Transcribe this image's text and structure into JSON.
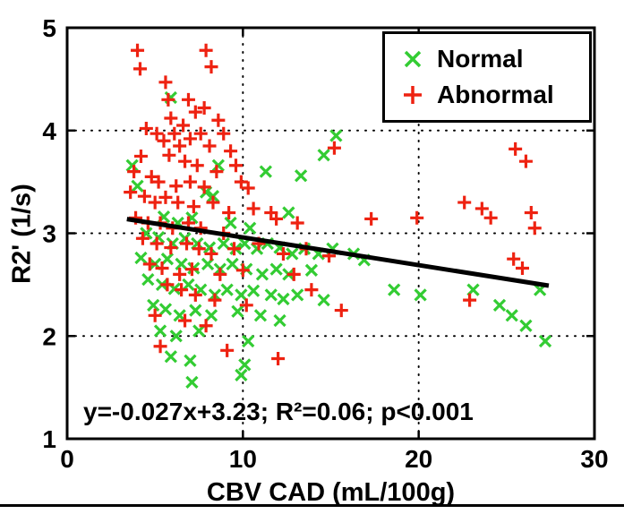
{
  "chart_data": {
    "type": "scatter",
    "title": "",
    "xlabel": "CBV CAD (mL/100g)",
    "ylabel": "R2' (1/s)",
    "xlim": [
      0,
      30
    ],
    "ylim": [
      1,
      5
    ],
    "x_ticks": [
      0,
      10,
      20,
      30
    ],
    "y_ticks": [
      1,
      2,
      3,
      4,
      5
    ],
    "grid": "dotted",
    "legend_position": "top-right",
    "series": [
      {
        "name": "Normal",
        "marker": "x",
        "color": "#33cc33",
        "points": [
          [
            5.9,
            4.32
          ],
          [
            15.3,
            3.95
          ],
          [
            14.6,
            3.76
          ],
          [
            3.7,
            3.66
          ],
          [
            8.6,
            3.66
          ],
          [
            11.3,
            3.6
          ],
          [
            13.3,
            3.56
          ],
          [
            4.0,
            3.46
          ],
          [
            7.9,
            3.4
          ],
          [
            8.3,
            3.36
          ],
          [
            12.6,
            3.2
          ],
          [
            5.5,
            3.16
          ],
          [
            6.3,
            3.1
          ],
          [
            7.1,
            3.15
          ],
          [
            9.3,
            3.1
          ],
          [
            10.4,
            3.05
          ],
          [
            4.5,
            3.0
          ],
          [
            5.2,
            2.96
          ],
          [
            6.0,
            2.9
          ],
          [
            6.7,
            2.95
          ],
          [
            7.4,
            2.9
          ],
          [
            8.1,
            2.86
          ],
          [
            8.9,
            2.9
          ],
          [
            9.6,
            2.85
          ],
          [
            10.1,
            2.9
          ],
          [
            10.8,
            2.85
          ],
          [
            11.4,
            2.9
          ],
          [
            12.1,
            2.86
          ],
          [
            12.8,
            2.8
          ],
          [
            13.5,
            2.85
          ],
          [
            14.3,
            2.8
          ],
          [
            15.1,
            2.85
          ],
          [
            4.2,
            2.76
          ],
          [
            5.0,
            2.7
          ],
          [
            5.7,
            2.75
          ],
          [
            6.5,
            2.7
          ],
          [
            7.2,
            2.66
          ],
          [
            8.0,
            2.7
          ],
          [
            8.7,
            2.65
          ],
          [
            9.4,
            2.7
          ],
          [
            10.2,
            2.65
          ],
          [
            11.1,
            2.6
          ],
          [
            11.9,
            2.65
          ],
          [
            12.6,
            2.6
          ],
          [
            13.9,
            2.64
          ],
          [
            16.3,
            2.8
          ],
          [
            16.9,
            2.74
          ],
          [
            4.6,
            2.55
          ],
          [
            5.4,
            2.5
          ],
          [
            6.1,
            2.46
          ],
          [
            6.9,
            2.5
          ],
          [
            7.6,
            2.45
          ],
          [
            8.4,
            2.4
          ],
          [
            9.1,
            2.45
          ],
          [
            9.9,
            2.4
          ],
          [
            10.6,
            2.44
          ],
          [
            11.6,
            2.4
          ],
          [
            12.3,
            2.36
          ],
          [
            13.1,
            2.4
          ],
          [
            14.6,
            2.35
          ],
          [
            18.6,
            2.45
          ],
          [
            20.1,
            2.4
          ],
          [
            23.1,
            2.45
          ],
          [
            4.9,
            2.3
          ],
          [
            5.6,
            2.26
          ],
          [
            6.4,
            2.2
          ],
          [
            7.3,
            2.25
          ],
          [
            8.2,
            2.2
          ],
          [
            9.7,
            2.24
          ],
          [
            11.0,
            2.2
          ],
          [
            12.1,
            2.15
          ],
          [
            24.6,
            2.3
          ],
          [
            25.3,
            2.2
          ],
          [
            26.9,
            2.45
          ],
          [
            5.3,
            2.05
          ],
          [
            6.2,
            2.0
          ],
          [
            7.5,
            2.05
          ],
          [
            10.3,
            1.95
          ],
          [
            26.1,
            2.1
          ],
          [
            27.2,
            1.95
          ],
          [
            5.9,
            1.8
          ],
          [
            7.0,
            1.76
          ],
          [
            10.1,
            1.72
          ],
          [
            7.1,
            1.55
          ],
          [
            9.9,
            1.62
          ]
        ]
      },
      {
        "name": "Abnormal",
        "marker": "+",
        "color": "#ee2211",
        "points": [
          [
            4.0,
            4.78
          ],
          [
            4.15,
            4.6
          ],
          [
            7.9,
            4.78
          ],
          [
            8.2,
            4.62
          ],
          [
            5.6,
            4.47
          ],
          [
            5.75,
            4.3
          ],
          [
            6.9,
            4.3
          ],
          [
            5.9,
            4.12
          ],
          [
            6.6,
            4.05
          ],
          [
            7.3,
            4.18
          ],
          [
            7.8,
            4.22
          ],
          [
            8.6,
            4.1
          ],
          [
            4.5,
            4.02
          ],
          [
            5.1,
            3.97
          ],
          [
            5.5,
            3.9
          ],
          [
            6.1,
            3.97
          ],
          [
            6.4,
            3.85
          ],
          [
            7.0,
            3.92
          ],
          [
            7.6,
            3.97
          ],
          [
            8.1,
            3.85
          ],
          [
            8.9,
            3.97
          ],
          [
            9.3,
            3.8
          ],
          [
            4.2,
            3.75
          ],
          [
            5.8,
            3.76
          ],
          [
            6.7,
            3.7
          ],
          [
            7.4,
            3.66
          ],
          [
            8.5,
            3.6
          ],
          [
            9.6,
            3.66
          ],
          [
            3.8,
            3.6
          ],
          [
            4.8,
            3.55
          ],
          [
            5.2,
            3.5
          ],
          [
            6.2,
            3.46
          ],
          [
            7.0,
            3.5
          ],
          [
            7.8,
            3.45
          ],
          [
            9.9,
            3.5
          ],
          [
            10.3,
            3.44
          ],
          [
            3.6,
            3.4
          ],
          [
            4.4,
            3.36
          ],
          [
            5.0,
            3.3
          ],
          [
            5.6,
            3.35
          ],
          [
            6.3,
            3.3
          ],
          [
            7.2,
            3.26
          ],
          [
            8.3,
            3.3
          ],
          [
            9.2,
            3.2
          ],
          [
            10.6,
            3.24
          ],
          [
            11.6,
            3.2
          ],
          [
            3.9,
            3.15
          ],
          [
            4.6,
            3.1
          ],
          [
            5.3,
            3.1
          ],
          [
            6.0,
            3.05
          ],
          [
            6.9,
            3.1
          ],
          [
            7.6,
            3.05
          ],
          [
            8.9,
            3.0
          ],
          [
            11.9,
            3.14
          ],
          [
            13.1,
            3.1
          ],
          [
            17.3,
            3.14
          ],
          [
            19.9,
            3.15
          ],
          [
            22.6,
            3.3
          ],
          [
            23.6,
            3.24
          ],
          [
            24.1,
            3.15
          ],
          [
            26.4,
            3.2
          ],
          [
            26.6,
            3.05
          ],
          [
            4.3,
            2.95
          ],
          [
            5.1,
            2.9
          ],
          [
            5.9,
            2.86
          ],
          [
            6.8,
            2.9
          ],
          [
            7.5,
            2.85
          ],
          [
            8.2,
            2.8
          ],
          [
            9.5,
            2.85
          ],
          [
            10.9,
            2.9
          ],
          [
            12.3,
            2.8
          ],
          [
            13.6,
            2.85
          ],
          [
            14.9,
            2.78
          ],
          [
            4.7,
            2.7
          ],
          [
            5.4,
            2.66
          ],
          [
            6.4,
            2.6
          ],
          [
            7.1,
            2.65
          ],
          [
            8.7,
            2.6
          ],
          [
            10.0,
            2.64
          ],
          [
            12.9,
            2.6
          ],
          [
            25.4,
            2.75
          ],
          [
            25.9,
            2.66
          ],
          [
            5.7,
            2.5
          ],
          [
            6.5,
            2.45
          ],
          [
            7.3,
            2.4
          ],
          [
            8.4,
            2.35
          ],
          [
            10.2,
            2.3
          ],
          [
            15.6,
            2.25
          ],
          [
            22.9,
            2.35
          ],
          [
            5.0,
            2.2
          ],
          [
            6.7,
            2.15
          ],
          [
            7.9,
            2.1
          ],
          [
            9.1,
            1.86
          ],
          [
            5.3,
            1.9
          ],
          [
            15.2,
            3.83
          ],
          [
            25.5,
            3.82
          ],
          [
            26.1,
            3.7
          ],
          [
            13.9,
            2.45
          ],
          [
            12.0,
            1.78
          ]
        ]
      }
    ],
    "fit_line": {
      "slope": -0.027,
      "intercept": 3.23,
      "x_start": 3.4,
      "x_end": 27.4,
      "color": "#000000"
    }
  },
  "annotation": {
    "text": "y=-0.027x+3.23; R²=0.06; p<0.001"
  }
}
